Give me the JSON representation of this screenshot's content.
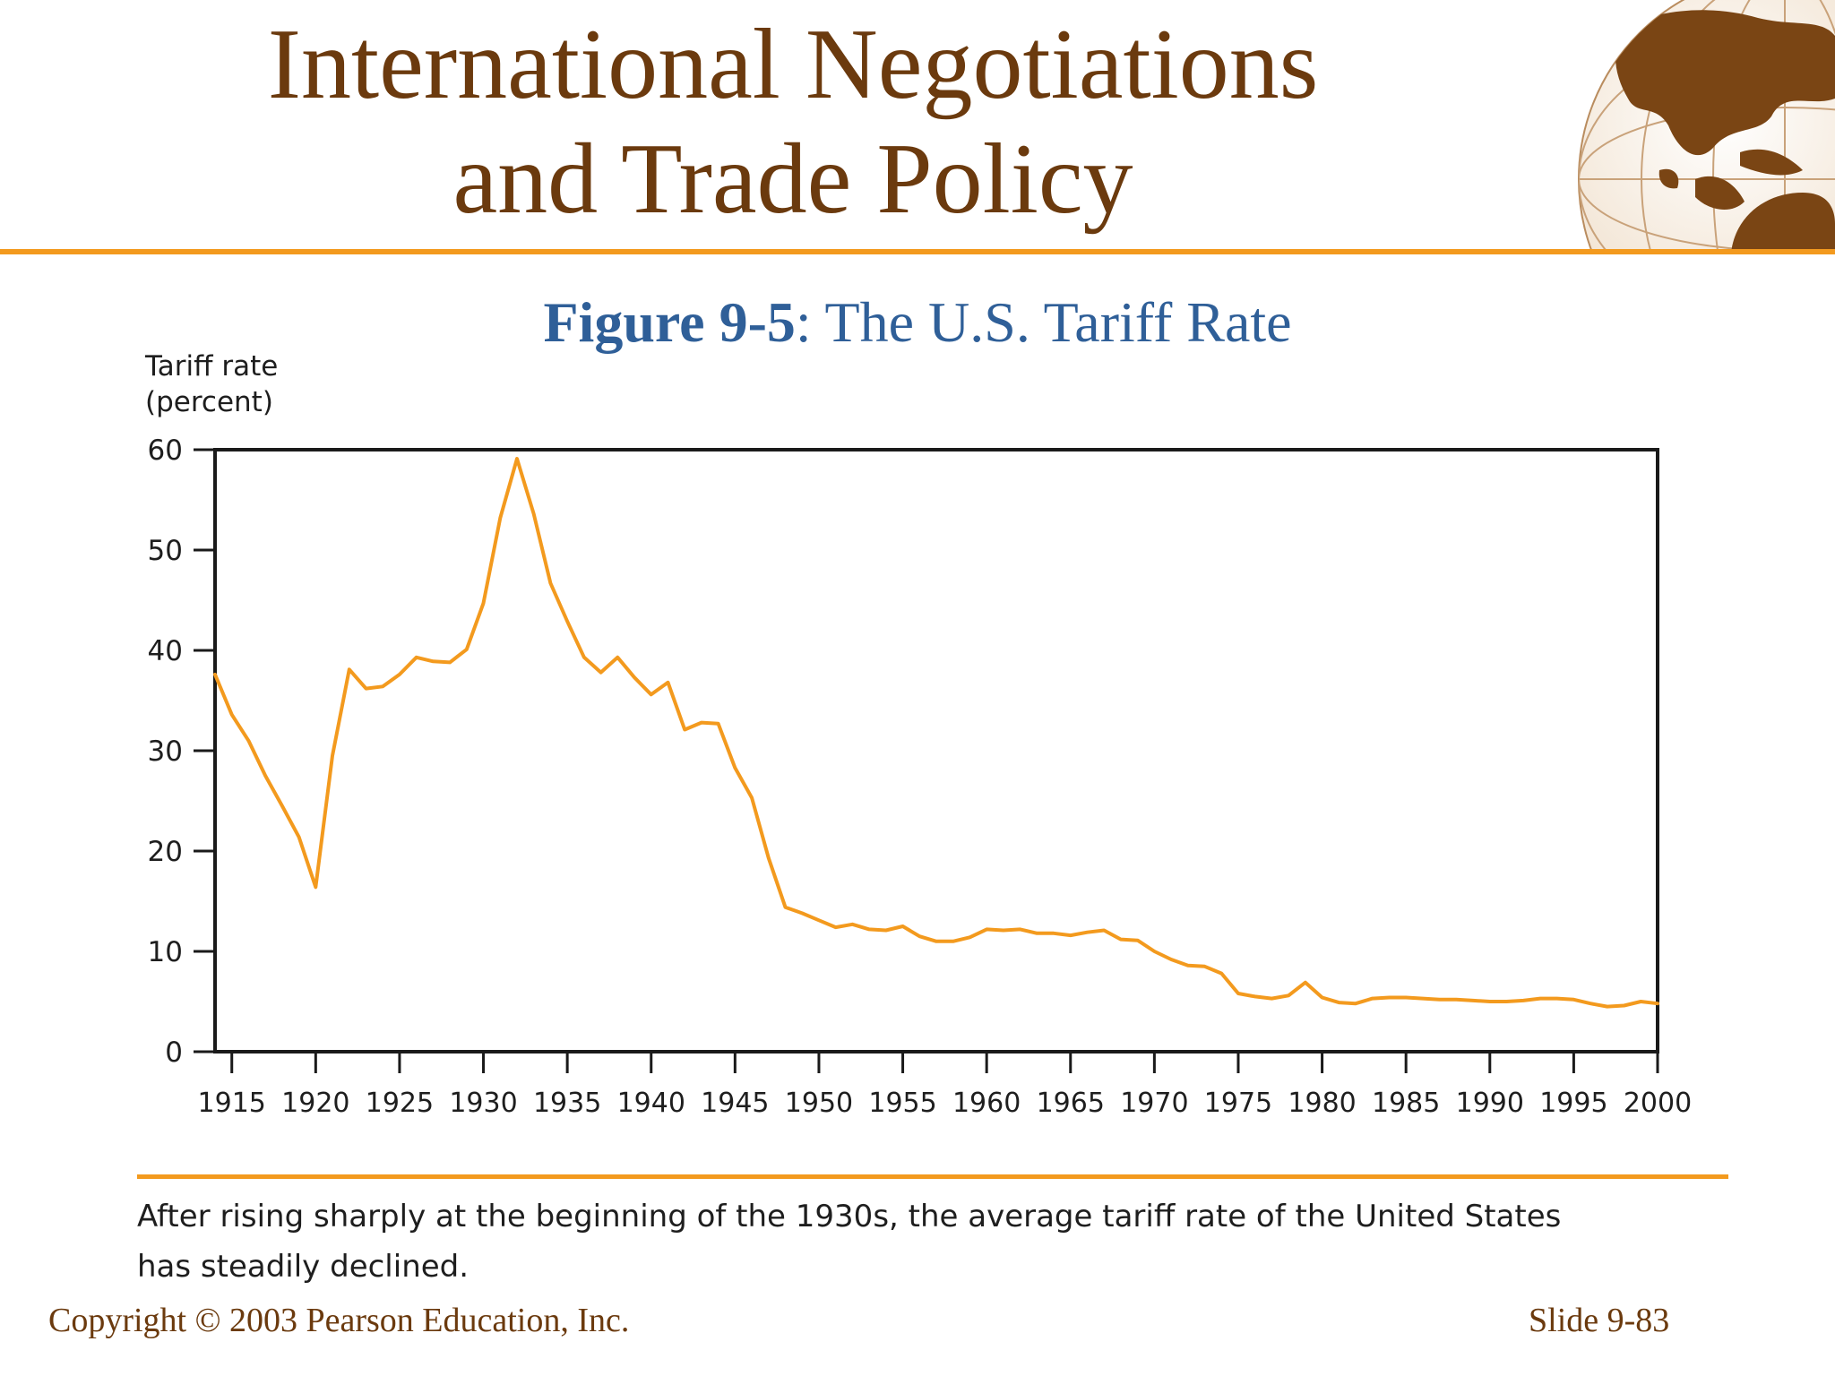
{
  "slide": {
    "title_line1": "International Negotiations",
    "title_line2": "and Trade Policy",
    "figure_number": "Figure 9-5",
    "figure_title": ": The U.S. Tariff Rate",
    "note": "After rising sharply at the beginning of the 1930s, the average tariff rate of the United States has steadily declined.",
    "copyright": "Copyright © 2003 Pearson Education, Inc.",
    "slide_number": "Slide 9-83"
  },
  "colors": {
    "title": "#6b3a0e",
    "accent_rule": "#f39a1e",
    "figure_caption": "#2f5f98",
    "series_line": "#f39a1e"
  },
  "chart_data": {
    "type": "line",
    "ylabel_line1": "Tariff rate",
    "ylabel_line2": "(percent)",
    "xlabel": "",
    "xlim": [
      1914,
      2000
    ],
    "ylim": [
      0,
      60
    ],
    "xticks": [
      1915,
      1920,
      1925,
      1930,
      1935,
      1940,
      1945,
      1950,
      1955,
      1960,
      1965,
      1970,
      1975,
      1980,
      1985,
      1990,
      1995,
      2000
    ],
    "yticks": [
      0,
      10,
      20,
      30,
      40,
      50,
      60
    ],
    "grid": false,
    "series": [
      {
        "x": [
          1914,
          1915,
          1916,
          1917,
          1918,
          1919,
          1920,
          1921,
          1922,
          1923,
          1924,
          1925,
          1926,
          1927,
          1928,
          1929,
          1930,
          1931,
          1932,
          1933,
          1934,
          1935,
          1936,
          1937,
          1938,
          1939,
          1940,
          1941,
          1942,
          1943,
          1944,
          1945,
          1946,
          1947,
          1948,
          1949,
          1950,
          1951,
          1952,
          1953,
          1954,
          1955,
          1956,
          1957,
          1958,
          1959,
          1960,
          1961,
          1962,
          1963,
          1964,
          1965,
          1966,
          1967,
          1968,
          1969,
          1970,
          1971,
          1972,
          1973,
          1974,
          1975,
          1976,
          1977,
          1978,
          1979,
          1980,
          1981,
          1982,
          1983,
          1984,
          1985,
          1986,
          1987,
          1988,
          1989,
          1990,
          1991,
          1992,
          1993,
          1994,
          1995,
          1996,
          1997,
          1998,
          1999,
          2000
        ],
        "y": [
          37.6,
          33.6,
          31.0,
          27.5,
          24.5,
          21.4,
          16.4,
          29.5,
          38.1,
          36.2,
          36.4,
          37.6,
          39.3,
          38.9,
          38.8,
          40.1,
          44.7,
          53.2,
          59.1,
          53.6,
          46.7,
          42.9,
          39.3,
          37.8,
          39.3,
          37.3,
          35.6,
          36.8,
          32.1,
          32.8,
          32.7,
          28.3,
          25.3,
          19.3,
          14.4,
          13.8,
          13.1,
          12.4,
          12.7,
          12.2,
          12.1,
          12.5,
          11.5,
          11.0,
          11.0,
          11.4,
          12.2,
          12.1,
          12.2,
          11.8,
          11.8,
          11.6,
          11.9,
          12.1,
          11.2,
          11.1,
          10.0,
          9.2,
          8.6,
          8.5,
          7.8,
          5.8,
          5.5,
          5.3,
          5.6,
          6.9,
          5.4,
          4.9,
          4.8,
          5.3,
          5.4,
          5.4,
          5.3,
          5.2,
          5.2,
          5.1,
          5.0,
          5.0,
          5.1,
          5.3,
          5.3,
          5.2,
          4.8,
          4.5,
          4.6,
          5.0,
          4.8
        ]
      }
    ]
  }
}
